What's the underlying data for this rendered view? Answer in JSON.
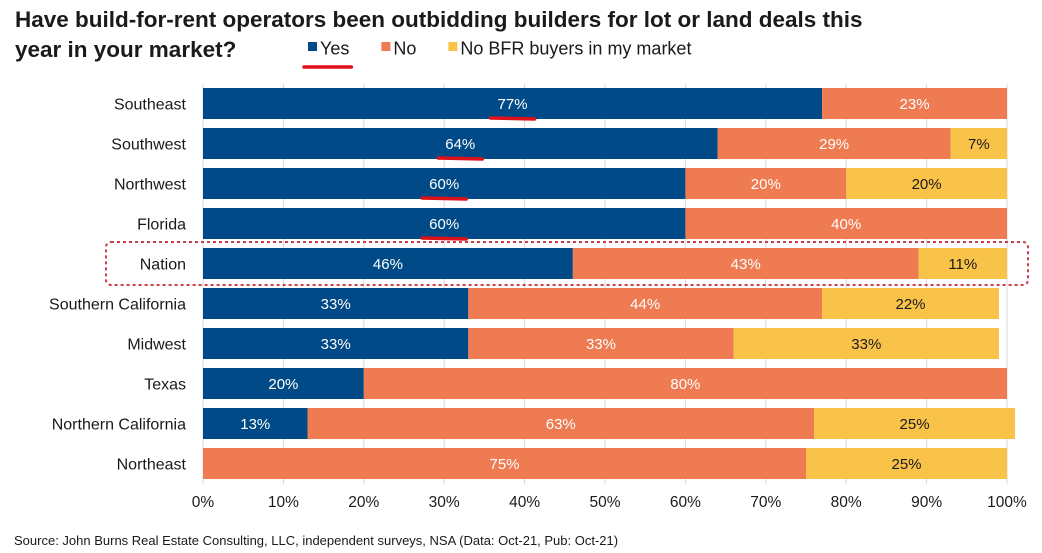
{
  "chart_data": {
    "type": "bar",
    "orientation": "horizontal",
    "stacked": true,
    "title_line1": "Have build-for-rent operators been outbidding builders for lot or land deals this",
    "title_line2": "year in your market?",
    "categories": [
      "Southeast",
      "Southwest",
      "Northwest",
      "Florida",
      "Nation",
      "Southern California",
      "Midwest",
      "Texas",
      "Northern California",
      "Northeast"
    ],
    "series": [
      {
        "name": "Yes",
        "color": "#004B87",
        "label_color": "#ffffff",
        "values": [
          77,
          64,
          60,
          60,
          46,
          33,
          33,
          20,
          13,
          0
        ]
      },
      {
        "name": "No",
        "color": "#EF7B52",
        "label_color": "#ffffff",
        "values": [
          23,
          29,
          20,
          40,
          43,
          44,
          33,
          80,
          63,
          75
        ]
      },
      {
        "name": "No BFR buyers in my market",
        "color": "#F9C34A",
        "label_color": "#1a1a1a",
        "values": [
          0,
          7,
          20,
          0,
          11,
          22,
          33,
          0,
          25,
          25
        ]
      }
    ],
    "xlim": [
      0,
      100
    ],
    "xticks": [
      "0%",
      "10%",
      "20%",
      "30%",
      "40%",
      "50%",
      "60%",
      "70%",
      "80%",
      "90%",
      "100%"
    ],
    "grid": "vertical",
    "legend_position": "top",
    "highlighted_category": "Nation",
    "underlined_values": [
      "Yes:Southeast",
      "Yes:Southwest",
      "Yes:Northwest",
      "Yes:Florida"
    ],
    "annotation_color": "#E0101A",
    "source": "Source: John Burns Real Estate Consulting, LLC, independent surveys, NSA (Data: Oct-21, Pub: Oct-21)"
  }
}
